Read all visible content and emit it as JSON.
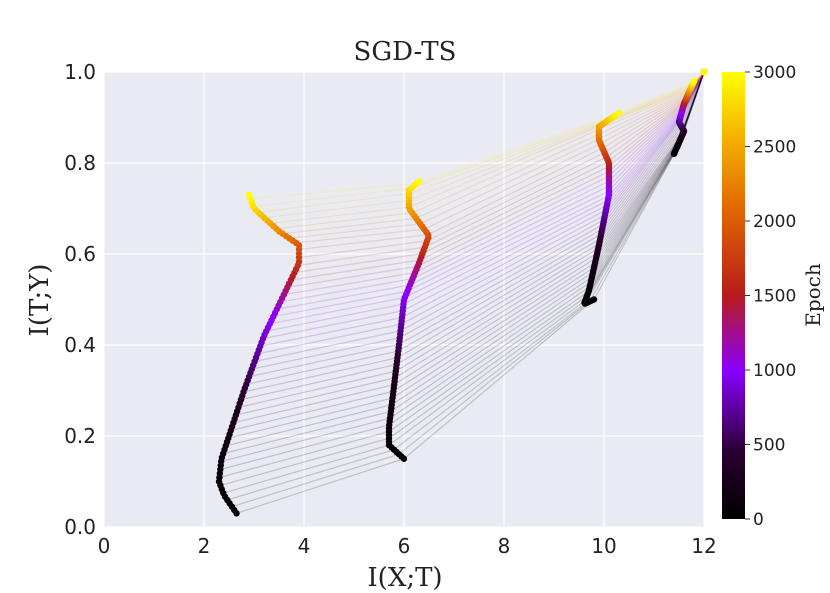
{
  "chart_data": {
    "type": "scatter",
    "title": "SGD-TS",
    "xlabel": "I(X;T)",
    "ylabel": "I(T;Y)",
    "xlim": [
      0,
      12
    ],
    "ylim": [
      0,
      1.0
    ],
    "xticks": [
      0,
      2,
      4,
      6,
      8,
      10,
      12
    ],
    "yticks": [
      0.0,
      0.2,
      0.4,
      0.6,
      0.8,
      1.0
    ],
    "xtick_labels": [
      "0",
      "2",
      "4",
      "6",
      "8",
      "10",
      "12"
    ],
    "ytick_labels": [
      "0.0",
      "0.2",
      "0.4",
      "0.6",
      "0.8",
      "1.0"
    ],
    "grid": true,
    "colorbar": {
      "label": "Epoch",
      "range": [
        0,
        3000
      ],
      "ticks": [
        0,
        500,
        1000,
        1500,
        2000,
        2500,
        3000
      ],
      "tick_labels": [
        "0",
        "500",
        "1000",
        "1500",
        "2000",
        "2500",
        "3000"
      ],
      "colormap": "gnuplot"
    },
    "series": [
      {
        "points": [
          [
            2.65,
            0.03
          ],
          [
            2.4,
            0.07
          ],
          [
            2.3,
            0.1
          ],
          [
            2.35,
            0.15
          ],
          [
            2.5,
            0.2
          ],
          [
            2.8,
            0.3
          ],
          [
            3.2,
            0.42
          ],
          [
            3.9,
            0.58
          ],
          [
            3.9,
            0.62
          ],
          [
            3.5,
            0.65
          ],
          [
            3.0,
            0.7
          ],
          [
            2.9,
            0.73
          ]
        ]
      },
      {
        "points": [
          [
            6.0,
            0.15
          ],
          [
            5.7,
            0.18
          ],
          [
            5.7,
            0.22
          ],
          [
            5.9,
            0.4
          ],
          [
            6.0,
            0.5
          ],
          [
            6.3,
            0.58
          ],
          [
            6.5,
            0.64
          ],
          [
            6.1,
            0.7
          ],
          [
            6.1,
            0.74
          ],
          [
            6.3,
            0.76
          ]
        ]
      },
      {
        "points": [
          [
            9.8,
            0.5
          ],
          [
            9.6,
            0.49
          ],
          [
            9.7,
            0.52
          ],
          [
            9.9,
            0.62
          ],
          [
            10.1,
            0.73
          ],
          [
            10.1,
            0.8
          ],
          [
            9.9,
            0.85
          ],
          [
            9.9,
            0.88
          ],
          [
            10.3,
            0.91
          ]
        ]
      },
      {
        "points": [
          [
            11.4,
            0.82
          ],
          [
            11.6,
            0.87
          ],
          [
            11.5,
            0.89
          ],
          [
            11.6,
            0.93
          ],
          [
            11.8,
            0.98
          ]
        ]
      },
      {
        "points": [
          [
            12.0,
            1.0
          ]
        ]
      }
    ],
    "epochs": [
      0,
      50,
      100,
      200,
      300,
      500,
      700,
      900,
      1100,
      1400,
      1800,
      2200,
      2600,
      3000
    ]
  }
}
